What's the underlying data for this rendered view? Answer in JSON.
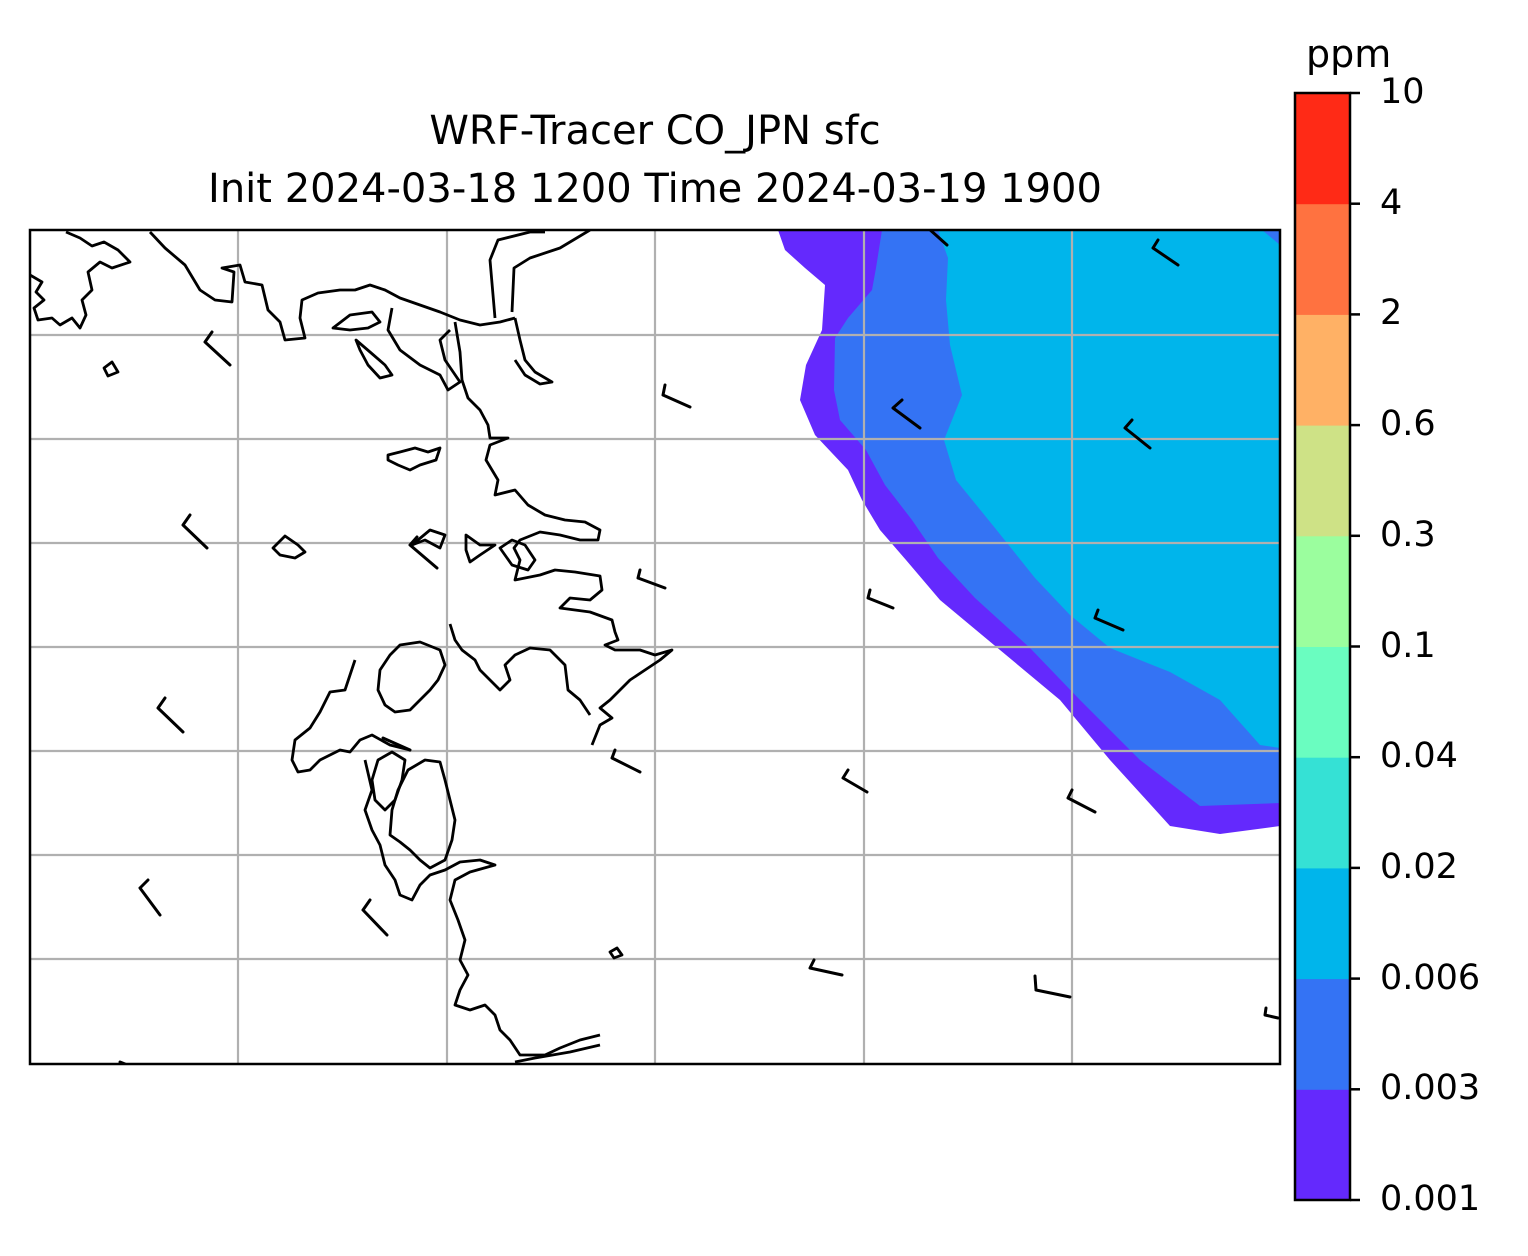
{
  "title": {
    "line1": "WRF-Tracer CO_JPN sfc",
    "line2": "Init 2024-03-18 1200 Time 2024-03-19 1900"
  },
  "colorbar": {
    "unit": "ppm",
    "levels": [
      "0.001",
      "0.003",
      "0.006",
      "0.02",
      "0.04",
      "0.1",
      "0.3",
      "0.6",
      "2",
      "4",
      "10"
    ],
    "colors": [
      "#6429fd",
      "#3473f4",
      "#00b5eb",
      "#35e1d5",
      "#6afdc0",
      "#9bfe9e",
      "#cee286",
      "#ffb165",
      "#ff7240",
      "#ff2a16"
    ]
  },
  "map": {
    "features": [
      "coastline-icon",
      "gridlines",
      "wind-barb-icon",
      "filled-contours"
    ]
  }
}
